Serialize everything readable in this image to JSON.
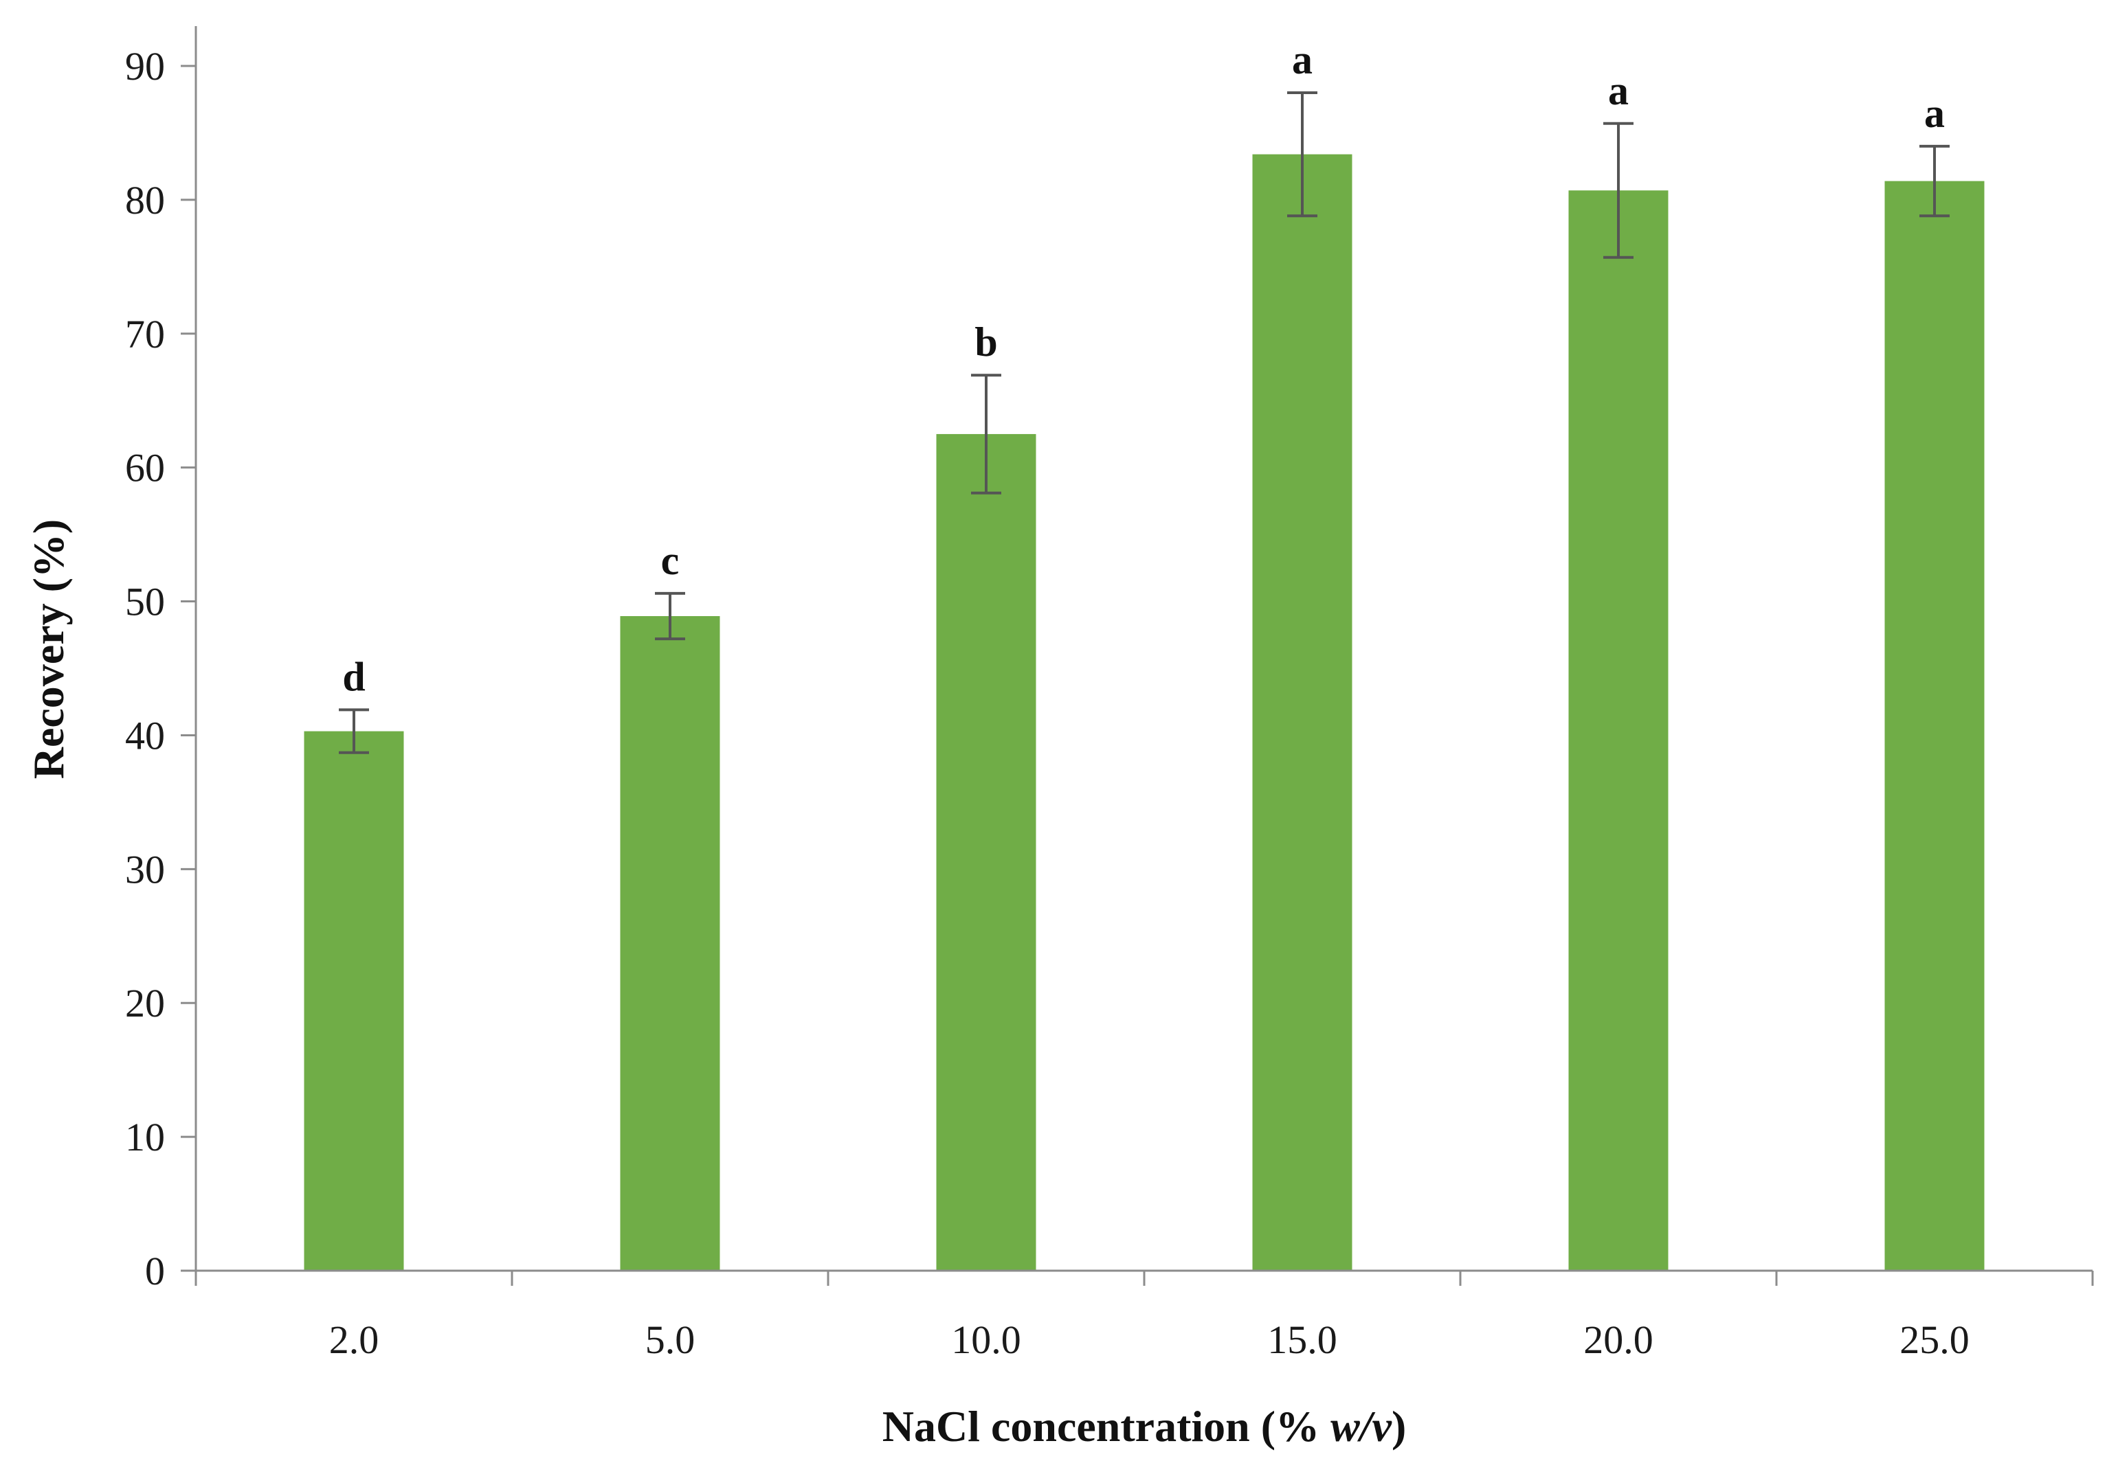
{
  "chart_data": {
    "type": "bar",
    "title": "",
    "xlabel_prefix": "NaCl concentration (% ",
    "xlabel_italic": "w/v",
    "xlabel_suffix": ")",
    "ylabel": "Recovery (%)",
    "categories": [
      "2.0",
      "5.0",
      "10.0",
      "15.0",
      "20.0",
      "25.0"
    ],
    "values": [
      40.3,
      48.9,
      62.5,
      83.4,
      80.7,
      81.4
    ],
    "error": [
      1.6,
      1.7,
      4.4,
      4.6,
      5.0,
      2.6
    ],
    "significance": [
      "d",
      "c",
      "b",
      "a",
      "a",
      "a"
    ],
    "ylim": [
      0,
      90
    ],
    "yticks": [
      0,
      10,
      20,
      30,
      40,
      50,
      60,
      70,
      80,
      90
    ],
    "bar_color": "#70AD47",
    "errorbar_color": "#555555",
    "axis_color": "#8c8c8c",
    "grid": false,
    "legend": "none"
  }
}
